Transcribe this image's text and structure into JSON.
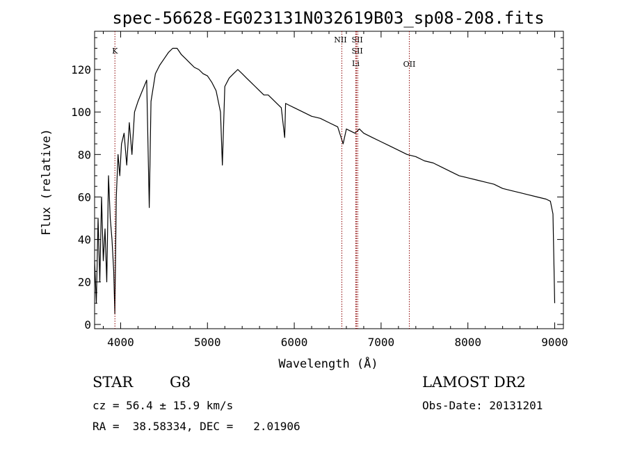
{
  "chart_data": {
    "type": "line",
    "title": "spec-56628-EG023131N032619B03_sp08-208.fits",
    "xlabel": "Wavelength (Å)",
    "ylabel": "Flux (relative)",
    "xlim": [
      3700,
      9100
    ],
    "ylim": [
      -2,
      138
    ],
    "xticks": [
      4000,
      5000,
      6000,
      7000,
      8000,
      9000
    ],
    "yticks": [
      0,
      20,
      40,
      60,
      80,
      100,
      120
    ],
    "grid": false,
    "line_color": "#000000",
    "marker_color": "#8b0000",
    "spectrum": {
      "x": [
        3700,
        3720,
        3740,
        3760,
        3780,
        3800,
        3820,
        3840,
        3860,
        3880,
        3900,
        3920,
        3933,
        3950,
        3970,
        3990,
        4010,
        4040,
        4070,
        4100,
        4130,
        4160,
        4200,
        4250,
        4300,
        4330,
        4350,
        4400,
        4450,
        4500,
        4550,
        4600,
        4650,
        4700,
        4750,
        4800,
        4850,
        4900,
        4950,
        5000,
        5050,
        5100,
        5150,
        5172,
        5200,
        5250,
        5300,
        5350,
        5400,
        5450,
        5500,
        5550,
        5600,
        5650,
        5700,
        5750,
        5800,
        5850,
        5890,
        5900,
        5950,
        6000,
        6100,
        6200,
        6300,
        6400,
        6500,
        6563,
        6600,
        6650,
        6700,
        6750,
        6800,
        6900,
        7000,
        7100,
        7200,
        7300,
        7400,
        7500,
        7600,
        7700,
        7800,
        7900,
        8000,
        8100,
        8200,
        8300,
        8400,
        8500,
        8600,
        8700,
        8800,
        8900,
        8950,
        8980,
        9000
      ],
      "y": [
        30,
        10,
        50,
        20,
        60,
        30,
        45,
        20,
        70,
        50,
        40,
        25,
        5,
        60,
        80,
        70,
        85,
        90,
        75,
        95,
        80,
        100,
        105,
        110,
        115,
        55,
        105,
        118,
        122,
        125,
        128,
        130,
        130,
        127,
        125,
        123,
        121,
        120,
        118,
        117,
        114,
        110,
        100,
        75,
        112,
        116,
        118,
        120,
        118,
        116,
        114,
        112,
        110,
        108,
        108,
        106,
        104,
        102,
        88,
        104,
        103,
        102,
        100,
        98,
        97,
        95,
        93,
        85,
        92,
        91,
        90,
        92,
        90,
        88,
        86,
        84,
        82,
        80,
        79,
        77,
        76,
        74,
        72,
        70,
        69,
        68,
        67,
        66,
        64,
        63,
        62,
        61,
        60,
        59,
        58,
        52,
        10
      ]
    },
    "annotations": [
      {
        "label": "K",
        "x": 3934
      },
      {
        "label": "NII",
        "x": 6548
      },
      {
        "label": "SII",
        "x": 6717
      },
      {
        "label": "SII",
        "x": 6731
      },
      {
        "label": "Li",
        "x": 6708
      },
      {
        "label": "OII",
        "x": 7325
      }
    ]
  },
  "footer": {
    "object_type": "STAR",
    "object_class": "G8",
    "survey": "LAMOST DR2",
    "cz_line": "cz = 56.4 ± 15.9 km/s",
    "obs_date": "Obs-Date: 20131201",
    "radec_line": "RA =  38.58334, DEC =   2.01906"
  }
}
